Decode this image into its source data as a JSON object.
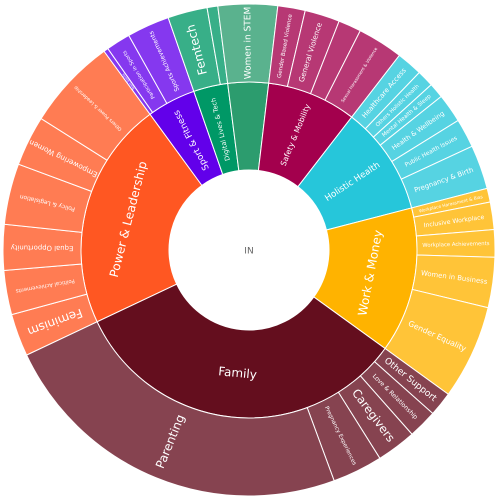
{
  "chart_data": {
    "type": "sunburst",
    "center_label": "IN",
    "label_color": "#ffffff",
    "gap_color": "#ffffff",
    "categories": [
      {
        "name": "Power & Leadership",
        "value": 22.0,
        "color": "#ff5722",
        "children": [
          {
            "name": "Feminism",
            "value": 2.8
          },
          {
            "name": "Political Achievements",
            "value": 2.9
          },
          {
            "name": "Equal Opportunity",
            "value": 3.0
          },
          {
            "name": "Policy & Legislation",
            "value": 4.0
          },
          {
            "name": "Empowering Women",
            "value": 3.3
          },
          {
            "name": "Others Power & Leadership",
            "value": 6.0
          }
        ]
      },
      {
        "name": "Sport & Fitness",
        "value": 4.7,
        "color": "#6200ea",
        "children": [
          {
            "name": "Team Sports",
            "value": 0.3
          },
          {
            "name": "Participation in Sports",
            "value": 1.6
          },
          {
            "name": "Sports Achievements",
            "value": 2.8
          }
        ]
      },
      {
        "name": "Digital Lives & Tech",
        "value": 3.3,
        "color": "#009866",
        "children": [
          {
            "name": "Femtech",
            "value": 2.6
          },
          {
            "name": "",
            "value": 0.7
          }
        ]
      },
      {
        "name": "",
        "value": 3.9,
        "color": "#2c9c6e",
        "children": [
          {
            "name": "Women in STEM",
            "value": 3.9
          }
        ]
      },
      {
        "name": "Safety & Mobility",
        "value": 8.6,
        "color": "#a3004d",
        "children": [
          {
            "name": "Gender Based Violence",
            "value": 1.8
          },
          {
            "name": "General Violence",
            "value": 2.3
          },
          {
            "name": "",
            "value": 1.5
          },
          {
            "name": "Sexual Harassment & Violence",
            "value": 3.0
          }
        ]
      },
      {
        "name": "Holistic Health",
        "value": 10.5,
        "color": "#26c6da",
        "children": [
          {
            "name": "Healthcare Access",
            "value": 1.7
          },
          {
            "name": "Others Holistic Health",
            "value": 1.1
          },
          {
            "name": "Mental Health & Sleep",
            "value": 1.0
          },
          {
            "name": "Health & Wellbeing",
            "value": 1.9
          },
          {
            "name": "Public Health Issues",
            "value": 1.9
          },
          {
            "name": "Pregnancy & Birth",
            "value": 2.9
          }
        ]
      },
      {
        "name": "Work & Money",
        "value": 14.0,
        "color": "#ffb300",
        "children": [
          {
            "name": "Workplace Harassment & Bias",
            "value": 0.9
          },
          {
            "name": "Inclusive Workplace",
            "value": 1.8
          },
          {
            "name": "Workplace Achievements",
            "value": 1.8
          },
          {
            "name": "Women in Business",
            "value": 3.3
          },
          {
            "name": "Gender Equality",
            "value": 6.2
          }
        ]
      },
      {
        "name": "Family",
        "value": 33.0,
        "color": "#640e1e",
        "children": [
          {
            "name": "Other Support",
            "value": 1.6
          },
          {
            "name": "Love & Relationship",
            "value": 1.9
          },
          {
            "name": "Caregivers",
            "value": 2.6
          },
          {
            "name": "Pregnancy Experiences",
            "value": 3.3
          },
          {
            "name": "Parenting",
            "value": 23.6
          }
        ]
      }
    ]
  }
}
